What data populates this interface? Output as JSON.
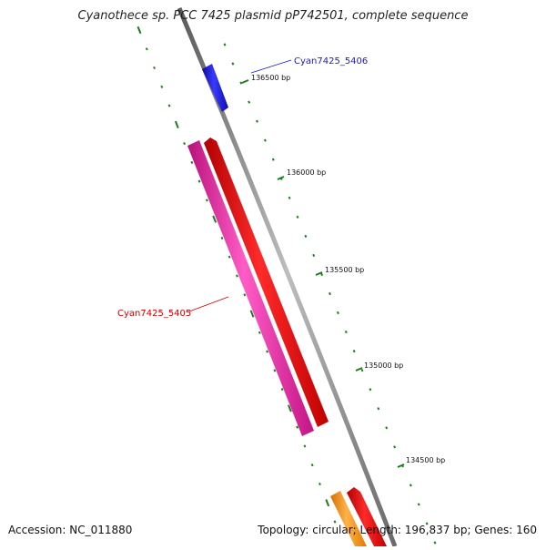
{
  "title": "Cyanothece sp. PCC 7425 plasmid pP742501, complete sequence",
  "footer": {
    "accession": "Accession: NC_011880",
    "summary": "Topology: circular; Length: 196,837 bp; Genes: 160"
  },
  "colors": {
    "backbone": "#8a8a8a",
    "ticks": "#1e7d1e",
    "gene_blue": "#1a1af0",
    "gene_red": "#ff1010",
    "gene_pink": "#f02ca8",
    "gene_orange": "#ff9a1a",
    "label_blue": "#1a1acc",
    "label_red": "#cc0000"
  },
  "ticks": [
    {
      "label": "136500 bp"
    },
    {
      "label": "136000 bp"
    },
    {
      "label": "135500 bp"
    },
    {
      "label": "135000 bp"
    },
    {
      "label": "134500 bp"
    }
  ],
  "genes": [
    {
      "name": "Cyan7425_5406"
    },
    {
      "name": "Cyan7425_5405"
    }
  ]
}
